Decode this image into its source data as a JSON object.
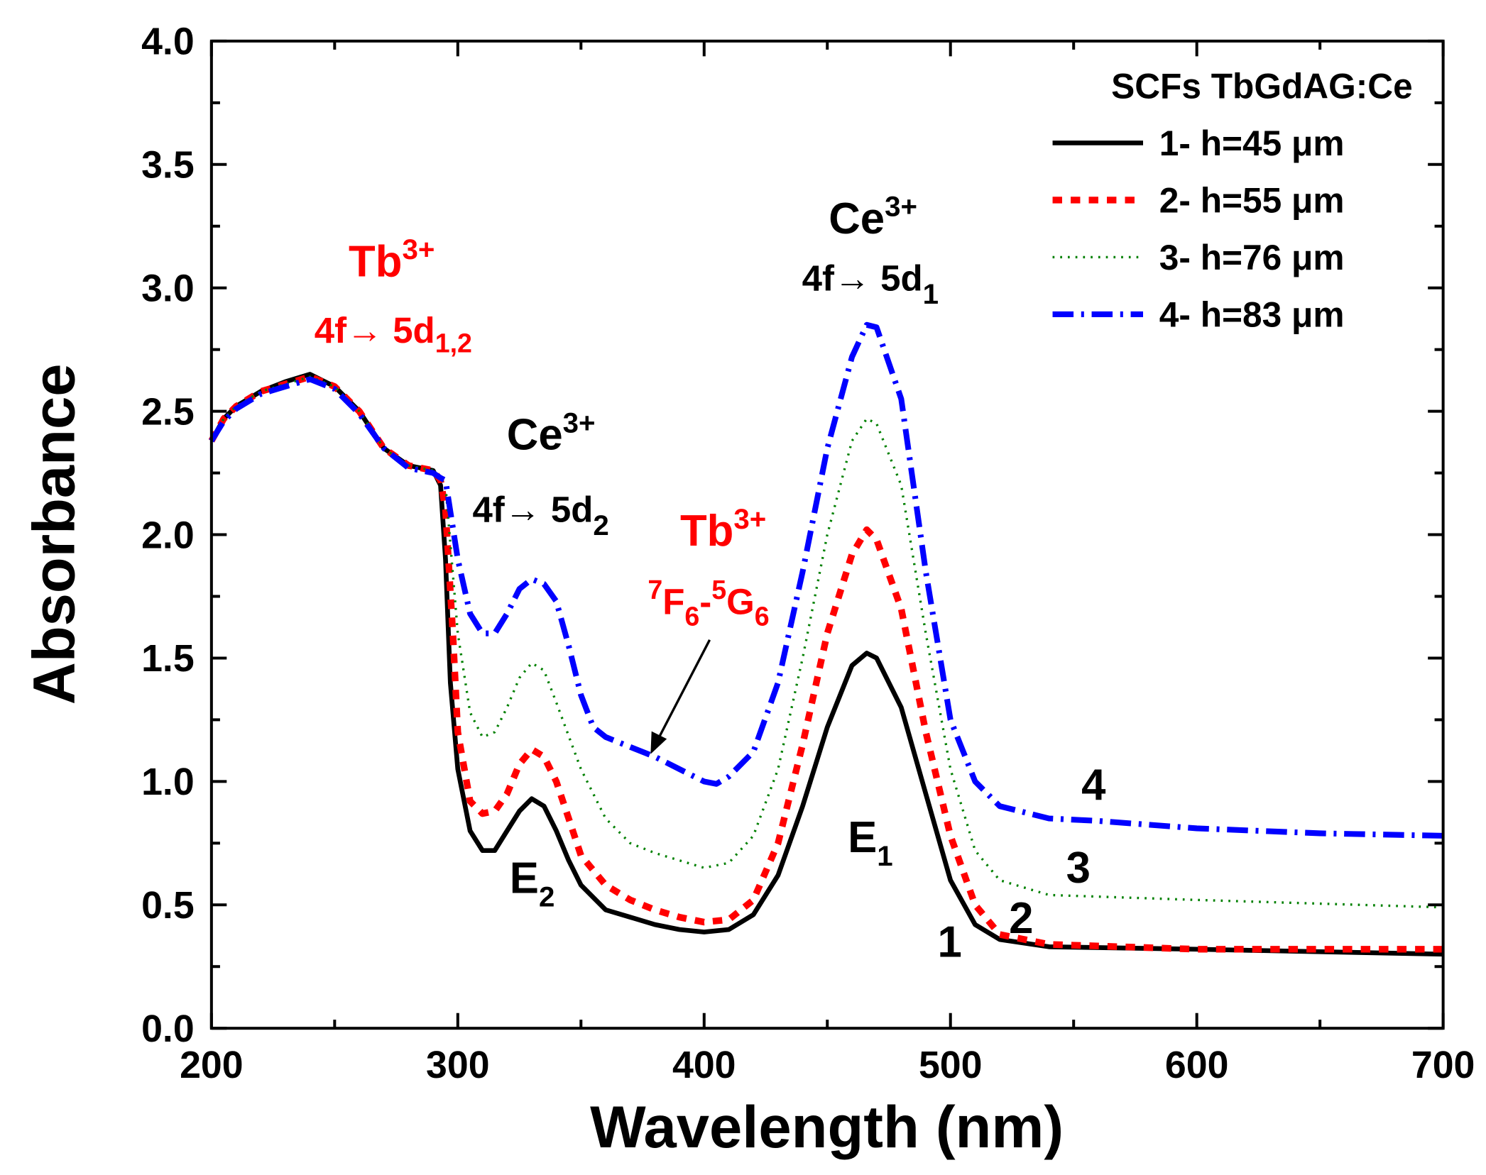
{
  "chart_data": {
    "type": "line",
    "title": "",
    "xlabel": "Wavelength (nm)",
    "ylabel": "Absorbance",
    "xlim": [
      200,
      700
    ],
    "ylim": [
      0.0,
      4.0
    ],
    "xticks": [
      "200",
      "300",
      "400",
      "500",
      "600",
      "700"
    ],
    "yticks": [
      "0.0",
      "0.5",
      "1.0",
      "1.5",
      "2.0",
      "2.5",
      "3.0",
      "3.5",
      "4.0"
    ],
    "grid": false,
    "legend_title": "SCFs TbGdAG:Ce",
    "legend_position": "top-right",
    "series": [
      {
        "name": "1- h=45 μm",
        "color": "#000000",
        "style": "solid",
        "curve_label": "1",
        "x": [
          200,
          205,
          210,
          220,
          230,
          240,
          250,
          260,
          270,
          280,
          290,
          293,
          295,
          297,
          300,
          305,
          310,
          315,
          320,
          325,
          330,
          335,
          340,
          345,
          350,
          360,
          370,
          380,
          390,
          400,
          410,
          420,
          430,
          440,
          450,
          460,
          466,
          470,
          480,
          490,
          500,
          510,
          520,
          540,
          600,
          700
        ],
        "y": [
          2.38,
          2.47,
          2.52,
          2.58,
          2.62,
          2.65,
          2.6,
          2.5,
          2.35,
          2.28,
          2.26,
          2.2,
          1.9,
          1.4,
          1.05,
          0.8,
          0.72,
          0.72,
          0.8,
          0.88,
          0.93,
          0.9,
          0.8,
          0.68,
          0.58,
          0.48,
          0.45,
          0.42,
          0.4,
          0.39,
          0.4,
          0.46,
          0.62,
          0.9,
          1.22,
          1.47,
          1.52,
          1.5,
          1.3,
          0.95,
          0.6,
          0.42,
          0.36,
          0.33,
          0.32,
          0.3
        ]
      },
      {
        "name": "2- h=55 μm",
        "color": "#ff0000",
        "style": "dash",
        "curve_label": "2",
        "x": [
          200,
          205,
          210,
          220,
          230,
          240,
          250,
          260,
          270,
          280,
          290,
          293,
          295,
          298,
          300,
          305,
          310,
          315,
          320,
          325,
          330,
          335,
          340,
          345,
          350,
          360,
          370,
          380,
          390,
          400,
          410,
          420,
          430,
          440,
          450,
          460,
          466,
          470,
          480,
          490,
          500,
          510,
          520,
          540,
          600,
          700
        ],
        "y": [
          2.38,
          2.47,
          2.52,
          2.58,
          2.61,
          2.64,
          2.6,
          2.5,
          2.35,
          2.28,
          2.26,
          2.22,
          2.1,
          1.6,
          1.2,
          0.92,
          0.87,
          0.88,
          0.95,
          1.07,
          1.13,
          1.1,
          1.0,
          0.85,
          0.7,
          0.58,
          0.52,
          0.48,
          0.45,
          0.43,
          0.44,
          0.52,
          0.75,
          1.15,
          1.6,
          1.92,
          2.02,
          1.98,
          1.7,
          1.2,
          0.78,
          0.5,
          0.38,
          0.34,
          0.32,
          0.32
        ]
      },
      {
        "name": "3- h=76 μm",
        "color": "#008000",
        "style": "dot",
        "curve_label": "3",
        "x": [
          200,
          205,
          210,
          220,
          230,
          240,
          250,
          260,
          270,
          280,
          290,
          293,
          295,
          300,
          305,
          310,
          315,
          320,
          325,
          330,
          335,
          340,
          350,
          360,
          370,
          380,
          390,
          400,
          410,
          420,
          430,
          440,
          450,
          460,
          466,
          470,
          480,
          490,
          500,
          510,
          520,
          540,
          600,
          700
        ],
        "y": [
          2.38,
          2.47,
          2.52,
          2.58,
          2.61,
          2.64,
          2.6,
          2.5,
          2.35,
          2.28,
          2.26,
          2.23,
          2.2,
          1.6,
          1.28,
          1.18,
          1.2,
          1.3,
          1.42,
          1.48,
          1.45,
          1.32,
          1.05,
          0.85,
          0.75,
          0.71,
          0.68,
          0.65,
          0.67,
          0.78,
          1.05,
          1.5,
          2.0,
          2.38,
          2.47,
          2.45,
          2.2,
          1.6,
          1.05,
          0.72,
          0.6,
          0.54,
          0.52,
          0.49
        ]
      },
      {
        "name": "4- h=83 μm",
        "color": "#0000ff",
        "style": "dashdot",
        "curve_label": "4",
        "x": [
          200,
          205,
          210,
          220,
          230,
          240,
          250,
          260,
          270,
          280,
          290,
          293,
          295,
          300,
          305,
          310,
          315,
          320,
          325,
          330,
          335,
          340,
          345,
          350,
          355,
          360,
          370,
          380,
          390,
          400,
          405,
          410,
          420,
          430,
          440,
          450,
          460,
          466,
          470,
          480,
          490,
          500,
          510,
          520,
          540,
          560,
          600,
          650,
          700
        ],
        "y": [
          2.38,
          2.46,
          2.51,
          2.57,
          2.6,
          2.63,
          2.59,
          2.49,
          2.35,
          2.27,
          2.25,
          2.23,
          2.22,
          1.9,
          1.68,
          1.6,
          1.6,
          1.68,
          1.78,
          1.82,
          1.8,
          1.73,
          1.55,
          1.35,
          1.22,
          1.18,
          1.14,
          1.1,
          1.05,
          1.0,
          0.99,
          1.02,
          1.12,
          1.4,
          1.85,
          2.35,
          2.72,
          2.85,
          2.84,
          2.55,
          1.85,
          1.25,
          1.0,
          0.9,
          0.85,
          0.84,
          0.81,
          0.79,
          0.78
        ]
      }
    ],
    "annotations": {
      "tb_uv": {
        "main": "Tb",
        "sup": "3+",
        "line": "4f→ 5d",
        "sub": "1,2",
        "color": "#ff0000"
      },
      "ce_d2": {
        "main": "Ce",
        "sup": "3+",
        "line": "4f→ 5d",
        "sub": "2",
        "color": "#000000"
      },
      "tb_fg": {
        "main": "Tb",
        "sup": "3+",
        "pre_sup": "7",
        "f": "F",
        "f_sub": "6",
        "dash": "-",
        "pre_sup2": "5",
        "g": "G",
        "g_sub": "6",
        "color": "#ff0000"
      },
      "ce_d1": {
        "main": "Ce",
        "sup": "3+",
        "line": "4f→ 5d",
        "sub": "1",
        "color": "#000000"
      },
      "e2": {
        "main": "E",
        "sub": "2"
      },
      "e1": {
        "main": "E",
        "sub": "1"
      }
    }
  }
}
